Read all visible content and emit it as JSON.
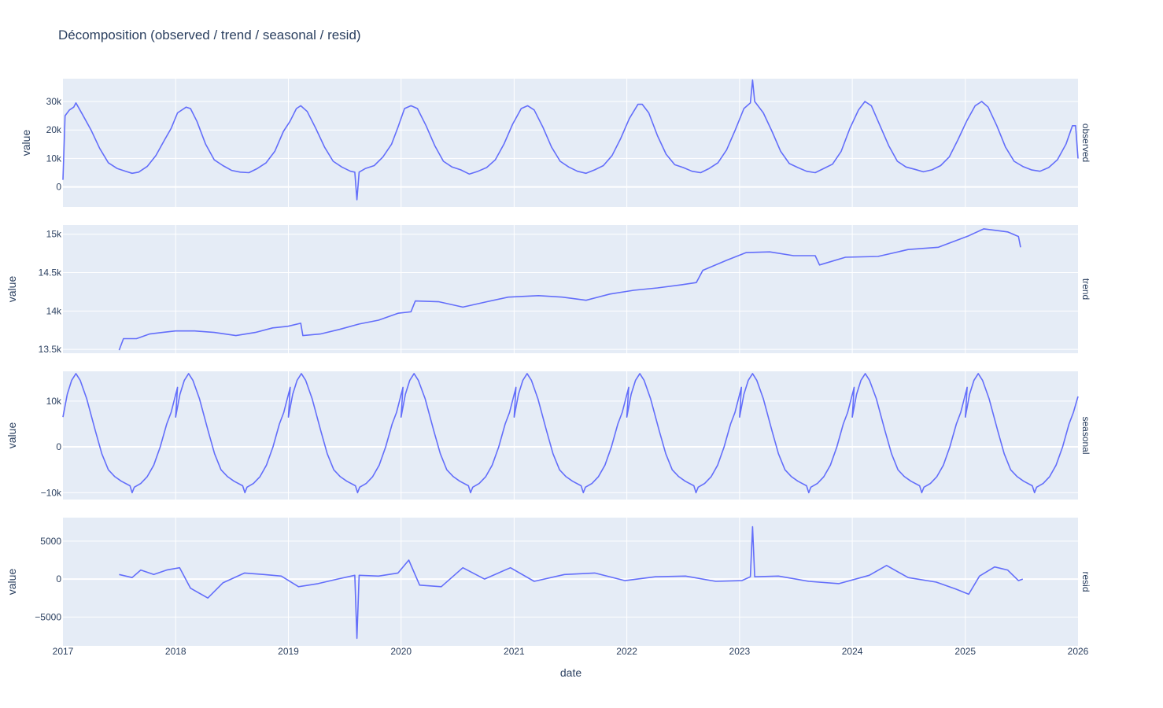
{
  "chart_data": {
    "type": "line",
    "title": "Décomposition (observed / trend / seasonal / resid)",
    "xlabel": "date",
    "x_ticks": [
      "2017",
      "2018",
      "2019",
      "2020",
      "2021",
      "2022",
      "2023",
      "2024",
      "2025",
      "2026"
    ],
    "xlim": [
      "2017-01-01",
      "2026-01-01"
    ],
    "line_color": "#636efa",
    "plot_bg": "#e5ecf6",
    "grid": true,
    "panels": [
      {
        "facet_label": "observed",
        "ylabel": "value",
        "ylim": [
          -7000,
          38000
        ],
        "y_ticks": [
          {
            "value": 0,
            "label": "0"
          },
          {
            "value": 10000,
            "label": "10k"
          },
          {
            "value": 20000,
            "label": "20k"
          },
          {
            "value": 30000,
            "label": "30k"
          }
        ],
        "points": [
          [
            "2017-01-01",
            2500
          ],
          [
            "2017-01-08",
            25000
          ],
          [
            "2017-01-22",
            27000
          ],
          [
            "2017-02-05",
            28000
          ],
          [
            "2017-02-12",
            29500
          ],
          [
            "2017-03-05",
            25500
          ],
          [
            "2017-04-02",
            20000
          ],
          [
            "2017-04-30",
            13500
          ],
          [
            "2017-05-28",
            8500
          ],
          [
            "2017-06-25",
            6500
          ],
          [
            "2017-07-23",
            5500
          ],
          [
            "2017-08-13",
            4800
          ],
          [
            "2017-09-03",
            5200
          ],
          [
            "2017-10-01",
            7200
          ],
          [
            "2017-10-29",
            11000
          ],
          [
            "2017-11-26",
            16500
          ],
          [
            "2017-12-17",
            20500
          ],
          [
            "2018-01-07",
            26000
          ],
          [
            "2018-02-04",
            28000
          ],
          [
            "2018-02-18",
            27500
          ],
          [
            "2018-03-11",
            23000
          ],
          [
            "2018-04-08",
            15000
          ],
          [
            "2018-05-06",
            9500
          ],
          [
            "2018-06-03",
            7500
          ],
          [
            "2018-07-01",
            5800
          ],
          [
            "2018-07-29",
            5200
          ],
          [
            "2018-08-26",
            5000
          ],
          [
            "2018-09-23",
            6500
          ],
          [
            "2018-10-21",
            8500
          ],
          [
            "2018-11-18",
            12500
          ],
          [
            "2018-12-16",
            19500
          ],
          [
            "2019-01-06",
            23000
          ],
          [
            "2019-01-27",
            27500
          ],
          [
            "2019-02-10",
            28500
          ],
          [
            "2019-03-03",
            26500
          ],
          [
            "2019-03-31",
            20500
          ],
          [
            "2019-04-28",
            14000
          ],
          [
            "2019-05-26",
            9000
          ],
          [
            "2019-06-23",
            7000
          ],
          [
            "2019-07-21",
            5500
          ],
          [
            "2019-08-04",
            5200
          ],
          [
            "2019-08-11",
            -4500
          ],
          [
            "2019-08-18",
            5200
          ],
          [
            "2019-09-08",
            6500
          ],
          [
            "2019-10-06",
            7500
          ],
          [
            "2019-11-03",
            10500
          ],
          [
            "2019-12-01",
            15000
          ],
          [
            "2019-12-22",
            21000
          ],
          [
            "2020-01-12",
            27500
          ],
          [
            "2020-02-02",
            28500
          ],
          [
            "2020-02-23",
            27500
          ],
          [
            "2020-03-22",
            21500
          ],
          [
            "2020-04-19",
            14500
          ],
          [
            "2020-05-17",
            9000
          ],
          [
            "2020-06-14",
            7000
          ],
          [
            "2020-07-12",
            6000
          ],
          [
            "2020-08-09",
            4500
          ],
          [
            "2020-09-06",
            5500
          ],
          [
            "2020-10-04",
            6800
          ],
          [
            "2020-11-01",
            9500
          ],
          [
            "2020-11-29",
            15000
          ],
          [
            "2020-12-27",
            22000
          ],
          [
            "2021-01-24",
            27500
          ],
          [
            "2021-02-14",
            28500
          ],
          [
            "2021-03-07",
            27000
          ],
          [
            "2021-04-04",
            21000
          ],
          [
            "2021-05-02",
            14000
          ],
          [
            "2021-05-30",
            9000
          ],
          [
            "2021-06-27",
            7000
          ],
          [
            "2021-07-25",
            5500
          ],
          [
            "2021-08-22",
            4800
          ],
          [
            "2021-09-19",
            6000
          ],
          [
            "2021-10-17",
            7500
          ],
          [
            "2021-11-14",
            11000
          ],
          [
            "2021-12-12",
            17000
          ],
          [
            "2022-01-09",
            24000
          ],
          [
            "2022-02-06",
            29000
          ],
          [
            "2022-02-20",
            29000
          ],
          [
            "2022-03-13",
            26000
          ],
          [
            "2022-04-10",
            18000
          ],
          [
            "2022-05-08",
            11500
          ],
          [
            "2022-06-05",
            7800
          ],
          [
            "2022-07-03",
            6800
          ],
          [
            "2022-07-31",
            5500
          ],
          [
            "2022-08-28",
            5000
          ],
          [
            "2022-09-25",
            6500
          ],
          [
            "2022-10-23",
            8500
          ],
          [
            "2022-11-20",
            13000
          ],
          [
            "2022-12-18",
            20000
          ],
          [
            "2023-01-15",
            27500
          ],
          [
            "2023-02-05",
            29500
          ],
          [
            "2023-02-12",
            37500
          ],
          [
            "2023-02-19",
            30000
          ],
          [
            "2023-03-19",
            26000
          ],
          [
            "2023-04-16",
            19500
          ],
          [
            "2023-05-14",
            12500
          ],
          [
            "2023-06-11",
            8200
          ],
          [
            "2023-07-09",
            6800
          ],
          [
            "2023-08-06",
            5500
          ],
          [
            "2023-09-03",
            5000
          ],
          [
            "2023-10-01",
            6500
          ],
          [
            "2023-10-29",
            8000
          ],
          [
            "2023-11-26",
            12500
          ],
          [
            "2023-12-24",
            20500
          ],
          [
            "2024-01-21",
            27000
          ],
          [
            "2024-02-11",
            30000
          ],
          [
            "2024-03-03",
            28500
          ],
          [
            "2024-03-31",
            21500
          ],
          [
            "2024-04-28",
            14500
          ],
          [
            "2024-05-26",
            9000
          ],
          [
            "2024-06-23",
            7000
          ],
          [
            "2024-07-21",
            6200
          ],
          [
            "2024-08-18",
            5300
          ],
          [
            "2024-09-15",
            6000
          ],
          [
            "2024-10-13",
            7500
          ],
          [
            "2024-11-10",
            10500
          ],
          [
            "2024-12-08",
            16500
          ],
          [
            "2025-01-05",
            23000
          ],
          [
            "2025-02-02",
            28500
          ],
          [
            "2025-02-23",
            30000
          ],
          [
            "2025-03-16",
            28000
          ],
          [
            "2025-04-13",
            21500
          ],
          [
            "2025-05-11",
            14000
          ],
          [
            "2025-06-08",
            9000
          ],
          [
            "2025-07-06",
            7200
          ],
          [
            "2025-08-03",
            6000
          ],
          [
            "2025-08-31",
            5500
          ],
          [
            "2025-09-28",
            6800
          ],
          [
            "2025-10-26",
            9500
          ],
          [
            "2025-11-23",
            15000
          ],
          [
            "2025-12-14",
            21500
          ],
          [
            "2025-12-24",
            21500
          ],
          [
            "2026-01-01",
            10000
          ]
        ]
      },
      {
        "facet_label": "trend",
        "ylabel": "value",
        "ylim": [
          13450,
          15120
        ],
        "y_ticks": [
          {
            "value": 13500,
            "label": "13.5k"
          },
          {
            "value": 14000,
            "label": "14k"
          },
          {
            "value": 14500,
            "label": "14.5k"
          },
          {
            "value": 15000,
            "label": "15k"
          }
        ],
        "points": [
          [
            "2017-07-02",
            13490
          ],
          [
            "2017-07-16",
            13640
          ],
          [
            "2017-08-27",
            13640
          ],
          [
            "2017-10-08",
            13700
          ],
          [
            "2017-11-19",
            13720
          ],
          [
            "2017-12-31",
            13740
          ],
          [
            "2018-03-04",
            13740
          ],
          [
            "2018-05-06",
            13720
          ],
          [
            "2018-07-15",
            13680
          ],
          [
            "2018-09-16",
            13720
          ],
          [
            "2018-11-11",
            13780
          ],
          [
            "2018-12-30",
            13800
          ],
          [
            "2019-02-10",
            13840
          ],
          [
            "2019-02-17",
            13680
          ],
          [
            "2019-04-14",
            13700
          ],
          [
            "2019-06-16",
            13760
          ],
          [
            "2019-08-18",
            13830
          ],
          [
            "2019-10-20",
            13880
          ],
          [
            "2019-12-22",
            13970
          ],
          [
            "2020-02-02",
            13990
          ],
          [
            "2020-02-16",
            14130
          ],
          [
            "2020-05-03",
            14120
          ],
          [
            "2020-07-19",
            14050
          ],
          [
            "2020-10-04",
            14120
          ],
          [
            "2020-12-13",
            14180
          ],
          [
            "2021-03-21",
            14200
          ],
          [
            "2021-06-06",
            14180
          ],
          [
            "2021-08-22",
            14140
          ],
          [
            "2021-11-07",
            14220
          ],
          [
            "2022-01-23",
            14270
          ],
          [
            "2022-04-10",
            14300
          ],
          [
            "2022-06-26",
            14340
          ],
          [
            "2022-08-14",
            14370
          ],
          [
            "2022-09-04",
            14530
          ],
          [
            "2022-11-20",
            14660
          ],
          [
            "2023-01-22",
            14760
          ],
          [
            "2023-04-09",
            14770
          ],
          [
            "2023-06-25",
            14720
          ],
          [
            "2023-09-03",
            14720
          ],
          [
            "2023-09-17",
            14600
          ],
          [
            "2023-12-10",
            14700
          ],
          [
            "2024-03-24",
            14710
          ],
          [
            "2024-06-30",
            14800
          ],
          [
            "2024-10-06",
            14830
          ],
          [
            "2025-01-12",
            14980
          ],
          [
            "2025-03-02",
            15070
          ],
          [
            "2025-05-18",
            15030
          ],
          [
            "2025-06-22",
            14970
          ],
          [
            "2025-06-29",
            14830
          ]
        ]
      },
      {
        "facet_label": "seasonal",
        "ylabel": "value",
        "ylim": [
          -11500,
          16500
        ],
        "y_ticks": [
          {
            "value": -10000,
            "label": "−10k"
          },
          {
            "value": 0,
            "label": "0"
          },
          {
            "value": 10000,
            "label": "10k"
          }
        ],
        "points": [
          [
            "2017-01-01",
            6500
          ],
          [
            "2017-01-15",
            11500
          ],
          [
            "2017-01-29",
            14500
          ],
          [
            "2017-02-12",
            16000
          ],
          [
            "2017-02-26",
            14500
          ],
          [
            "2017-03-19",
            10500
          ],
          [
            "2017-04-16",
            3500
          ],
          [
            "2017-05-07",
            -1500
          ],
          [
            "2017-05-28",
            -5000
          ],
          [
            "2017-06-18",
            -6500
          ],
          [
            "2017-07-09",
            -7500
          ],
          [
            "2017-08-06",
            -8500
          ],
          [
            "2017-08-13",
            -10000
          ],
          [
            "2017-08-20",
            -8800
          ],
          [
            "2017-09-10",
            -8000
          ],
          [
            "2017-10-01",
            -6500
          ],
          [
            "2017-10-22",
            -4000
          ],
          [
            "2017-11-12",
            0
          ],
          [
            "2017-12-03",
            5000
          ],
          [
            "2017-12-17",
            7500
          ],
          [
            "2018-01-07",
            13000
          ]
        ],
        "period": "1y"
      },
      {
        "facet_label": "resid",
        "ylabel": "value",
        "ylim": [
          -8800,
          8100
        ],
        "y_ticks": [
          {
            "value": -5000,
            "label": "−5000"
          },
          {
            "value": 0,
            "label": "0"
          },
          {
            "value": 5000,
            "label": "5000"
          }
        ],
        "points": [
          [
            "2017-07-02",
            600
          ],
          [
            "2017-08-13",
            200
          ],
          [
            "2017-09-10",
            1200
          ],
          [
            "2017-10-22",
            600
          ],
          [
            "2017-12-03",
            1200
          ],
          [
            "2018-01-14",
            1500
          ],
          [
            "2018-02-18",
            -1200
          ],
          [
            "2018-04-15",
            -2500
          ],
          [
            "2018-06-03",
            -500
          ],
          [
            "2018-08-12",
            800
          ],
          [
            "2018-10-14",
            600
          ],
          [
            "2018-12-09",
            400
          ],
          [
            "2019-02-03",
            -1000
          ],
          [
            "2019-04-07",
            -600
          ],
          [
            "2019-06-09",
            0
          ],
          [
            "2019-08-04",
            500
          ],
          [
            "2019-08-11",
            -7800
          ],
          [
            "2019-08-18",
            500
          ],
          [
            "2019-10-20",
            400
          ],
          [
            "2019-12-22",
            800
          ],
          [
            "2020-01-26",
            2500
          ],
          [
            "2020-03-01",
            -800
          ],
          [
            "2020-05-10",
            -1000
          ],
          [
            "2020-07-19",
            1500
          ],
          [
            "2020-09-27",
            0
          ],
          [
            "2020-12-20",
            1500
          ],
          [
            "2021-03-07",
            -300
          ],
          [
            "2021-06-13",
            600
          ],
          [
            "2021-09-19",
            800
          ],
          [
            "2021-12-26",
            -200
          ],
          [
            "2022-04-03",
            300
          ],
          [
            "2022-07-10",
            400
          ],
          [
            "2022-10-16",
            -300
          ],
          [
            "2023-01-08",
            -200
          ],
          [
            "2023-02-05",
            300
          ],
          [
            "2023-02-12",
            6900
          ],
          [
            "2023-02-19",
            300
          ],
          [
            "2023-05-07",
            400
          ],
          [
            "2023-08-13",
            -300
          ],
          [
            "2023-11-19",
            -600
          ],
          [
            "2024-02-25",
            500
          ],
          [
            "2024-04-21",
            1800
          ],
          [
            "2024-06-30",
            200
          ],
          [
            "2024-09-29",
            -400
          ],
          [
            "2024-12-01",
            -1300
          ],
          [
            "2025-01-12",
            -2000
          ],
          [
            "2025-02-16",
            400
          ],
          [
            "2025-04-06",
            1600
          ],
          [
            "2025-05-18",
            1200
          ],
          [
            "2025-06-22",
            -200
          ],
          [
            "2025-07-06",
            0
          ]
        ]
      }
    ]
  }
}
